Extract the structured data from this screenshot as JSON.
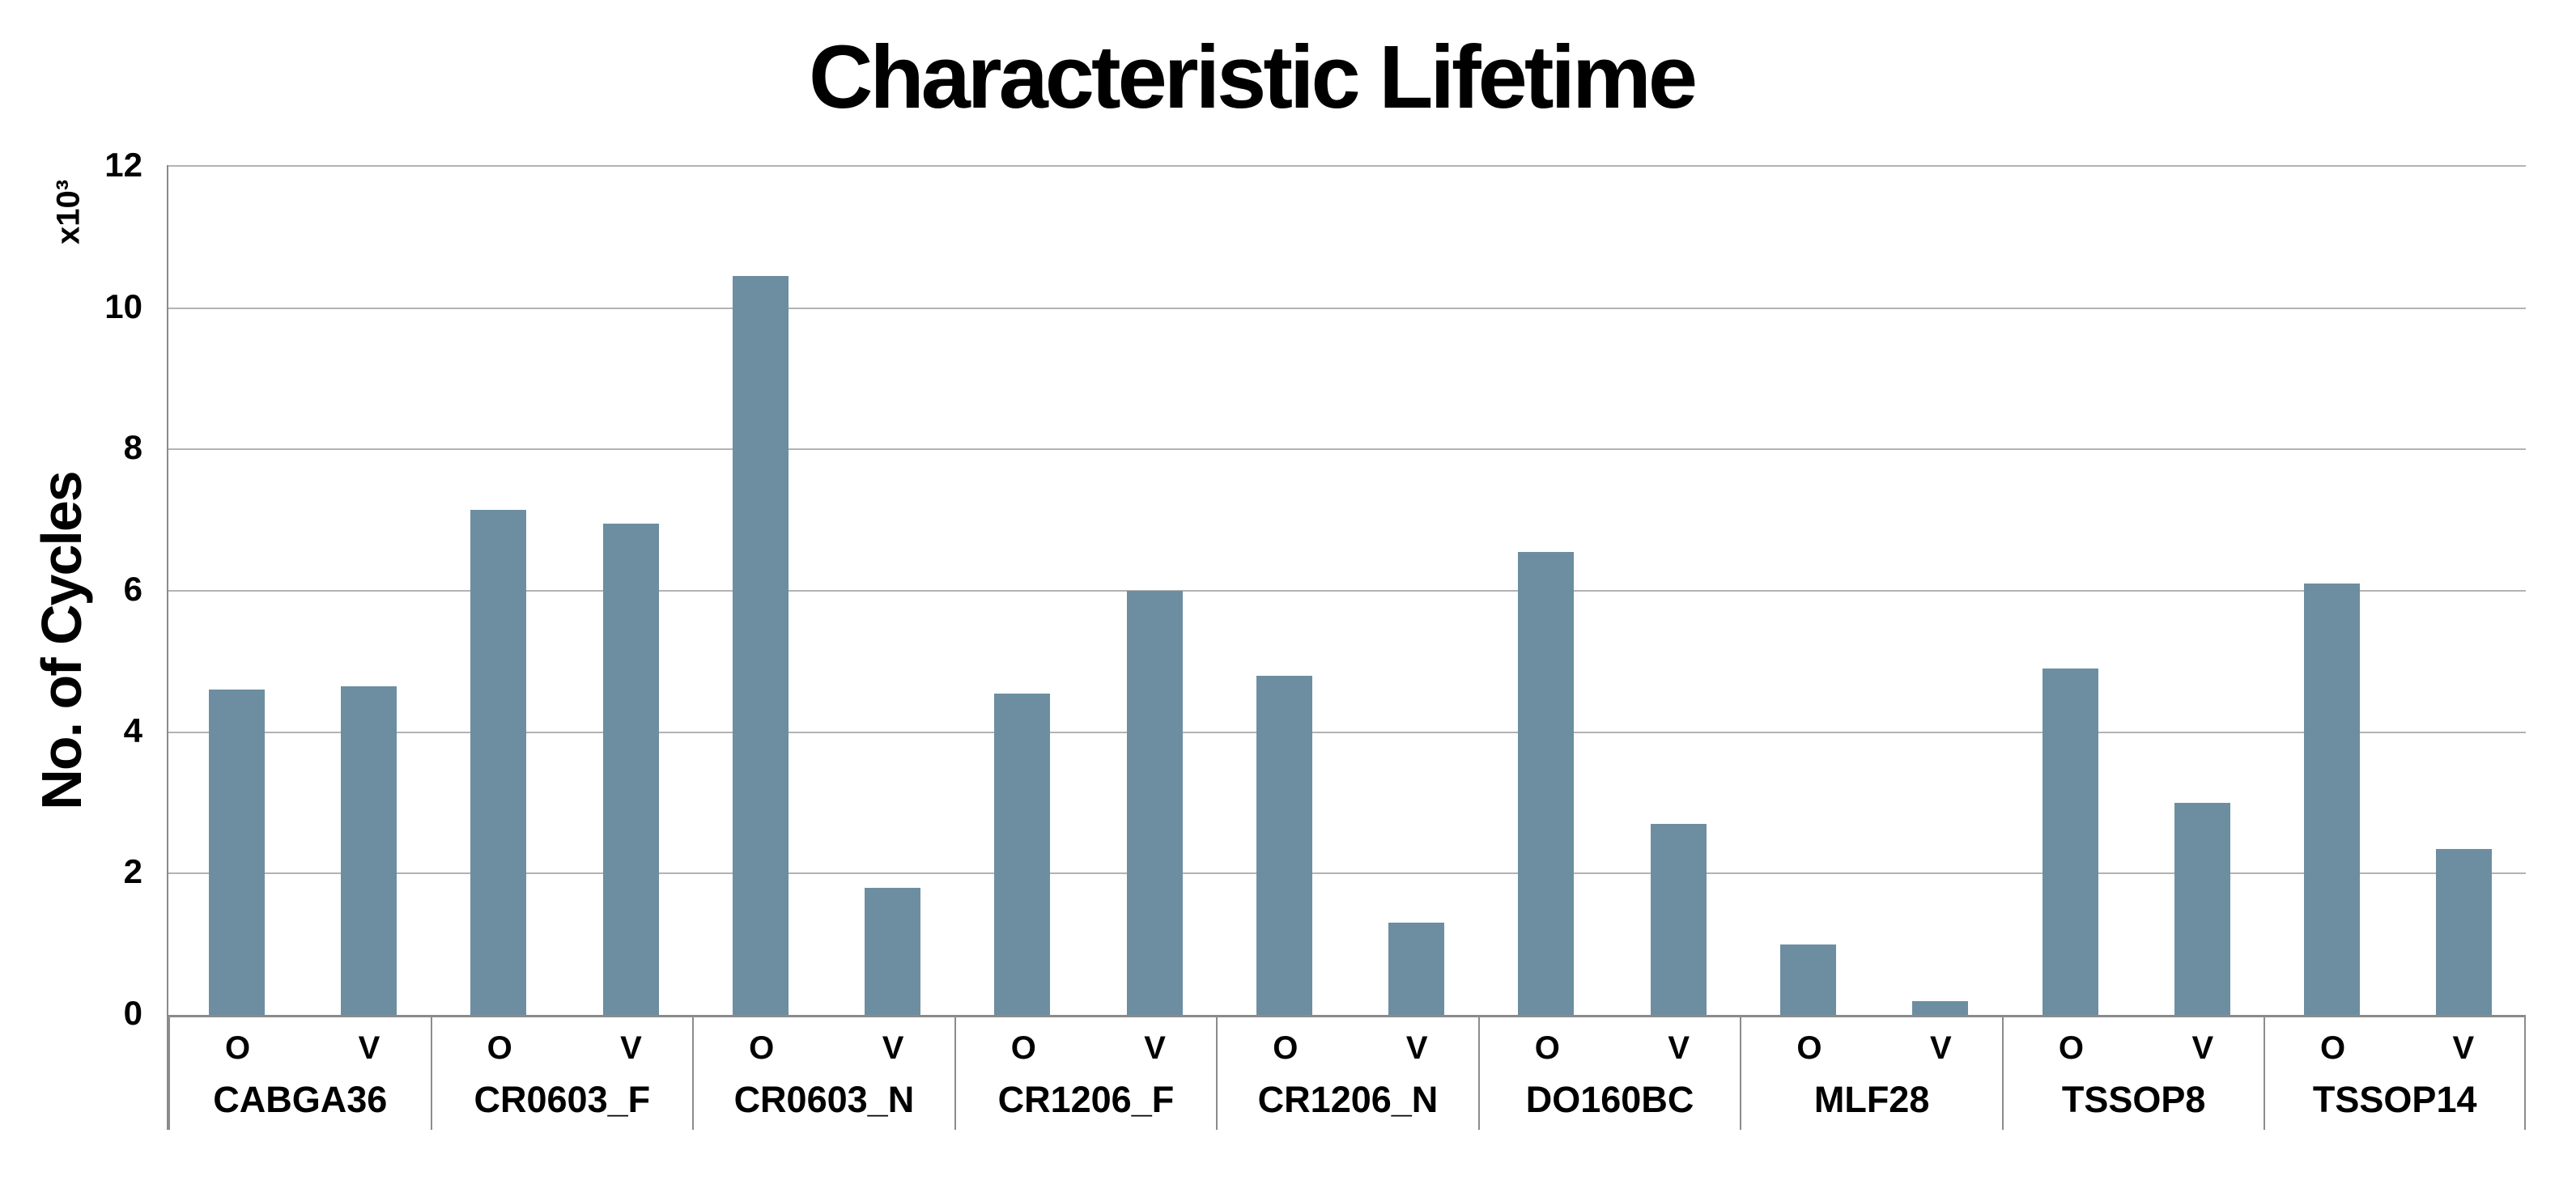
{
  "page": {
    "background": "#ffffff"
  },
  "chart_data": {
    "type": "bar",
    "title": "Characteristic Lifetime",
    "ylabel": "No. of Cycles",
    "y_multiplier_label": "x10³",
    "xlabel": "",
    "ylim": [
      0,
      12
    ],
    "yticks": [
      0,
      2,
      4,
      6,
      8,
      10,
      12
    ],
    "grid": true,
    "legend_position": "none",
    "bar_color": "#6d8ea1",
    "gridline_color": "#b3b3b3",
    "axis_color": "#8a8a8a",
    "categories": [
      "CABGA36",
      "CR0603_F",
      "CR0603_N",
      "CR1206_F",
      "CR1206_N",
      "DO160BC",
      "MLF28",
      "TSSOP8",
      "TSSOP14"
    ],
    "series": [
      {
        "name": "O",
        "values": [
          4.6,
          7.15,
          10.45,
          4.55,
          4.8,
          6.55,
          1.0,
          4.9,
          6.1
        ]
      },
      {
        "name": "V",
        "values": [
          4.65,
          6.95,
          1.8,
          6.0,
          1.3,
          2.7,
          0.2,
          3.0,
          2.35
        ]
      }
    ]
  }
}
